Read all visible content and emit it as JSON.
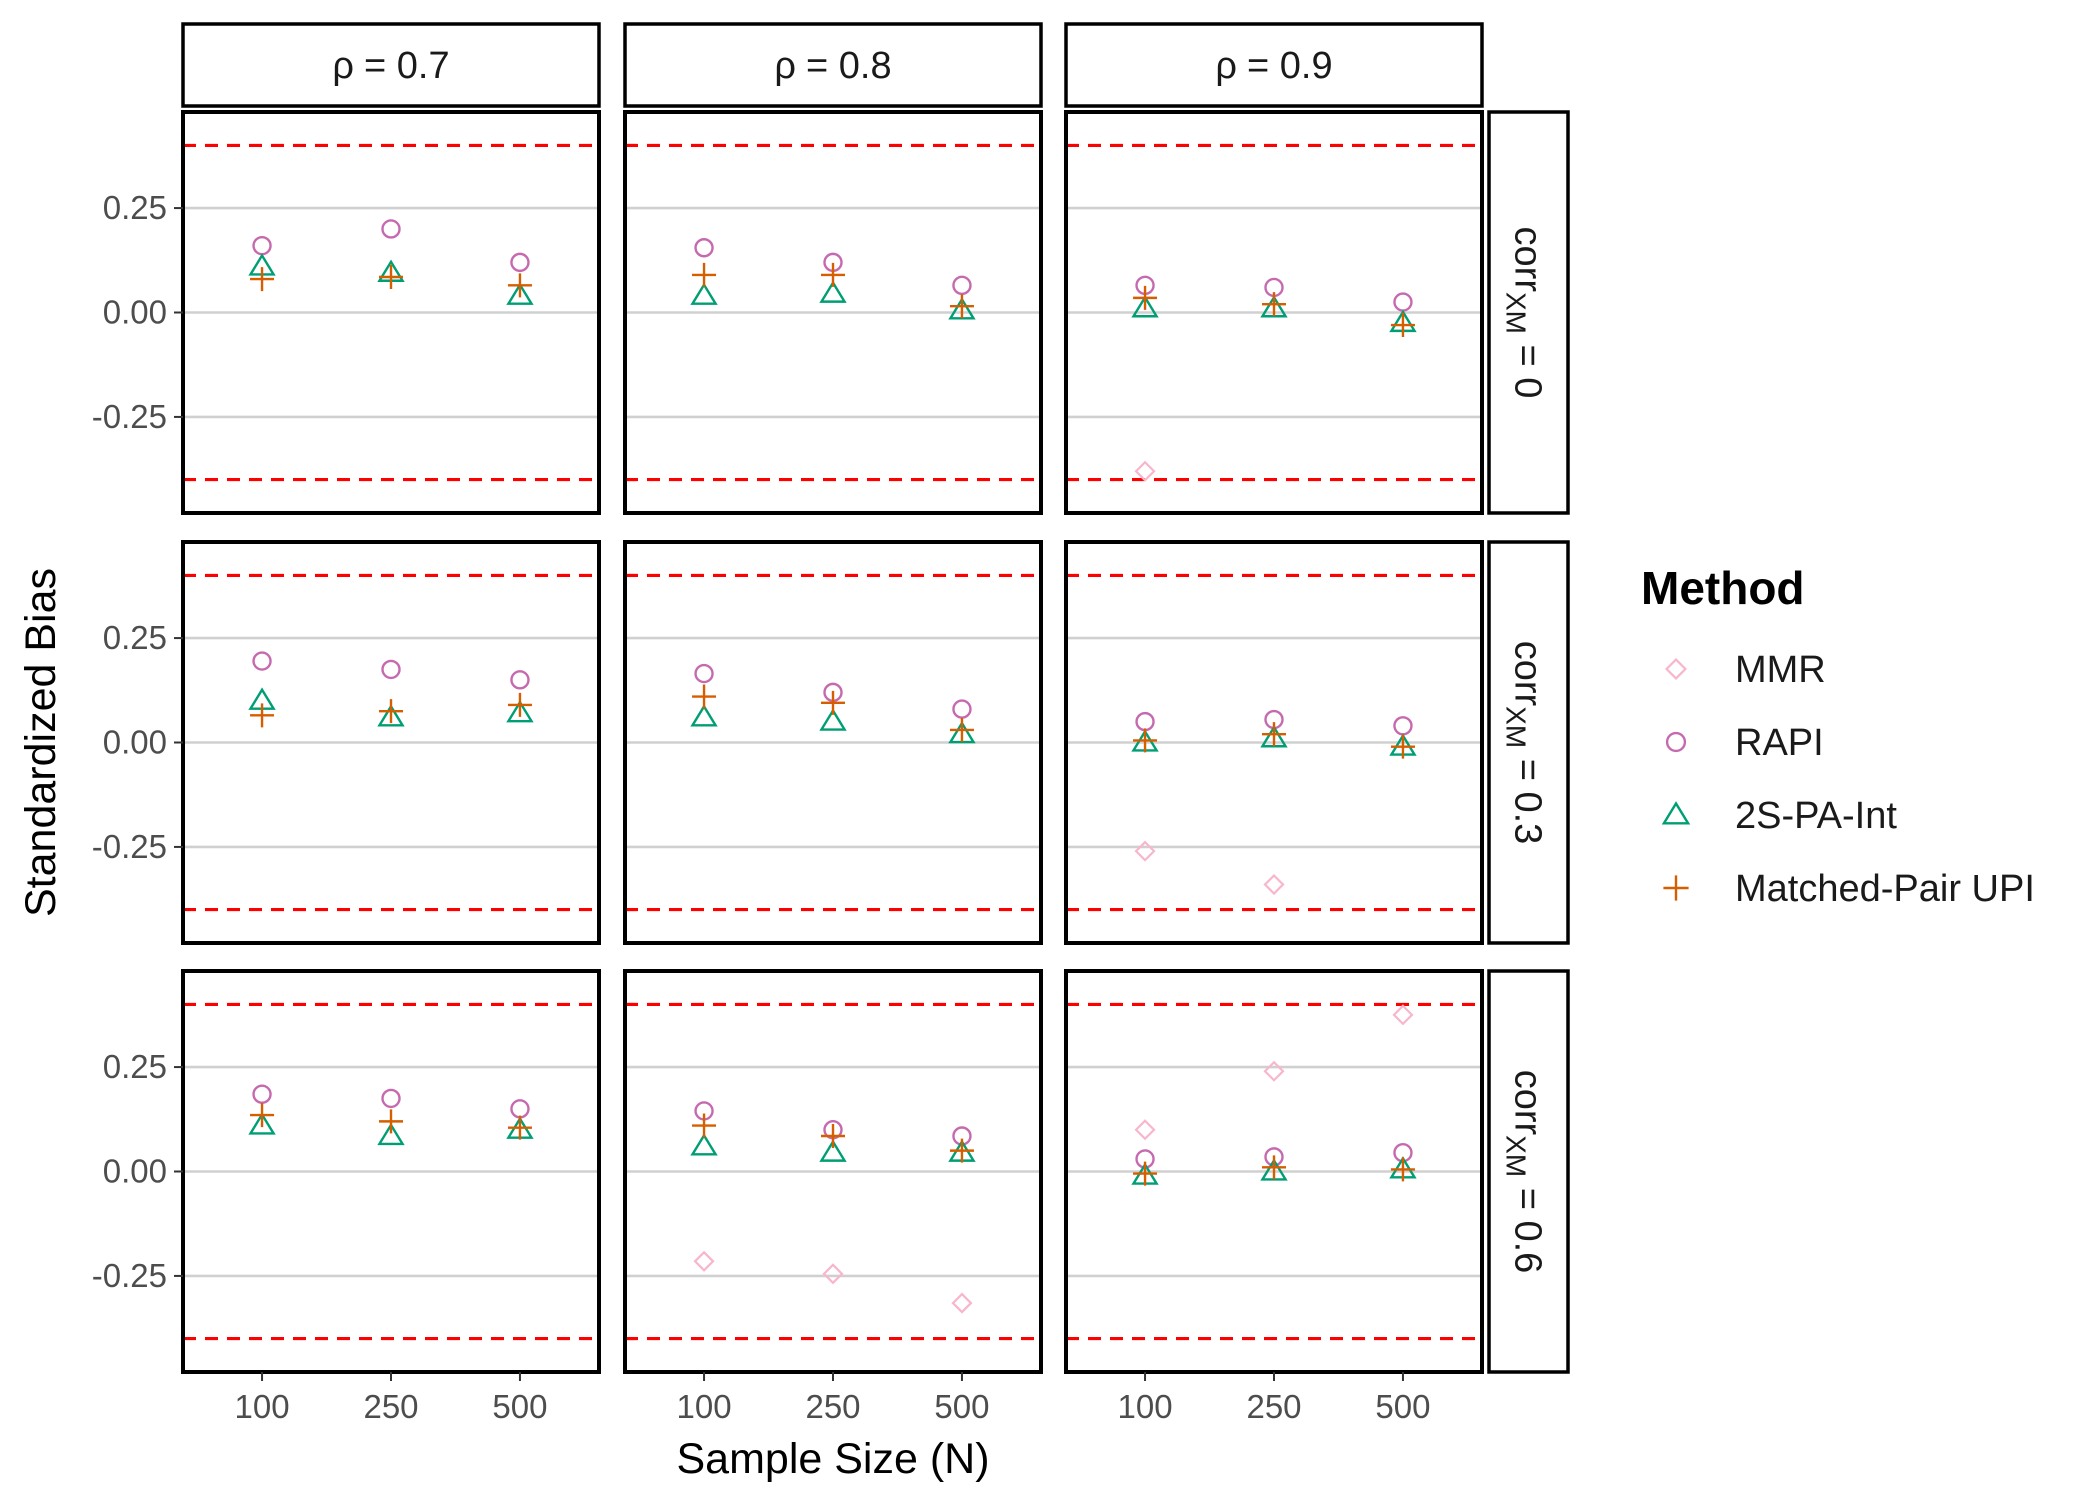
{
  "chart_data": {
    "type": "scatter",
    "xlabel": "Sample Size (N)",
    "ylabel": "Standardized Bias",
    "x_categories": [
      "100",
      "250",
      "500"
    ],
    "ylim": [
      -0.48,
      0.48
    ],
    "y_ticks": [
      0.25,
      0,
      -0.25
    ],
    "y_tick_labels": [
      "0.25",
      "0.00",
      "-0.25"
    ],
    "reference_lines": {
      "values": [
        0.4,
        -0.4
      ],
      "color": "#FF0000",
      "style": "dashed"
    },
    "grid": true,
    "legend": {
      "title": "Method",
      "placement": "right",
      "entries": [
        {
          "label": "MMR",
          "marker": "diamond",
          "color": "#F8B6CC"
        },
        {
          "label": "RAPI",
          "marker": "circle",
          "color": "#C66AAF"
        },
        {
          "label": "2S-PA-Int",
          "marker": "triangle",
          "color": "#009E73"
        },
        {
          "label": "Matched-Pair UPI",
          "marker": "plus",
          "color": "#D55E00"
        }
      ]
    },
    "col_facets": [
      {
        "prefix": "ρ",
        "value": "= 0.7"
      },
      {
        "prefix": "ρ",
        "value": "= 0.8"
      },
      {
        "prefix": "ρ",
        "value": "= 0.9"
      }
    ],
    "row_facets": [
      {
        "base": "corr",
        "sub": "XM",
        "value": " = 0"
      },
      {
        "base": "corr",
        "sub": "XM",
        "value": " = 0.3"
      },
      {
        "base": "corr",
        "sub": "XM",
        "value": " = 0.6"
      }
    ],
    "panels": [
      {
        "row": 0,
        "col": 0,
        "MMR": [
          null,
          null,
          null
        ],
        "RAPI": [
          0.16,
          0.2,
          0.12
        ],
        "2S-PA-Int": [
          0.11,
          0.095,
          0.04
        ],
        "Matched-Pair UPI": [
          0.08,
          0.085,
          0.065
        ]
      },
      {
        "row": 0,
        "col": 1,
        "MMR": [
          null,
          null,
          null
        ],
        "RAPI": [
          0.155,
          0.12,
          0.065
        ],
        "2S-PA-Int": [
          0.04,
          0.045,
          0.005
        ],
        "Matched-Pair UPI": [
          0.09,
          0.09,
          0.015
        ]
      },
      {
        "row": 0,
        "col": 2,
        "MMR": [
          -0.38,
          null,
          null
        ],
        "RAPI": [
          0.065,
          0.06,
          0.025
        ],
        "2S-PA-Int": [
          0.01,
          0.01,
          -0.025
        ],
        "Matched-Pair UPI": [
          0.035,
          0.02,
          -0.03
        ]
      },
      {
        "row": 1,
        "col": 0,
        "MMR": [
          null,
          null,
          null
        ],
        "RAPI": [
          0.195,
          0.175,
          0.15
        ],
        "2S-PA-Int": [
          0.1,
          0.06,
          0.07
        ],
        "Matched-Pair UPI": [
          0.065,
          0.075,
          0.09
        ]
      },
      {
        "row": 1,
        "col": 1,
        "MMR": [
          null,
          null,
          null
        ],
        "RAPI": [
          0.165,
          0.12,
          0.08
        ],
        "2S-PA-Int": [
          0.06,
          0.05,
          0.02
        ],
        "Matched-Pair UPI": [
          0.11,
          0.095,
          0.03
        ]
      },
      {
        "row": 1,
        "col": 2,
        "MMR": [
          -0.26,
          -0.34,
          null
        ],
        "RAPI": [
          0.05,
          0.055,
          0.04
        ],
        "2S-PA-Int": [
          0.0,
          0.01,
          -0.01
        ],
        "Matched-Pair UPI": [
          0.005,
          0.02,
          -0.01
        ]
      },
      {
        "row": 2,
        "col": 0,
        "MMR": [
          null,
          null,
          null
        ],
        "RAPI": [
          0.185,
          0.175,
          0.15
        ],
        "2S-PA-Int": [
          0.11,
          0.085,
          0.1
        ],
        "Matched-Pair UPI": [
          0.135,
          0.12,
          0.105
        ]
      },
      {
        "row": 2,
        "col": 1,
        "MMR": [
          -0.215,
          -0.245,
          -0.315
        ],
        "RAPI": [
          0.145,
          0.1,
          0.085
        ],
        "2S-PA-Int": [
          0.06,
          0.045,
          0.045
        ],
        "Matched-Pair UPI": [
          0.11,
          0.085,
          0.05
        ]
      },
      {
        "row": 2,
        "col": 2,
        "MMR": [
          0.1,
          0.24,
          0.375
        ],
        "RAPI": [
          0.03,
          0.035,
          0.045
        ],
        "2S-PA-Int": [
          -0.01,
          0.0,
          0.005
        ],
        "Matched-Pair UPI": [
          -0.005,
          0.01,
          0.005
        ]
      }
    ]
  }
}
